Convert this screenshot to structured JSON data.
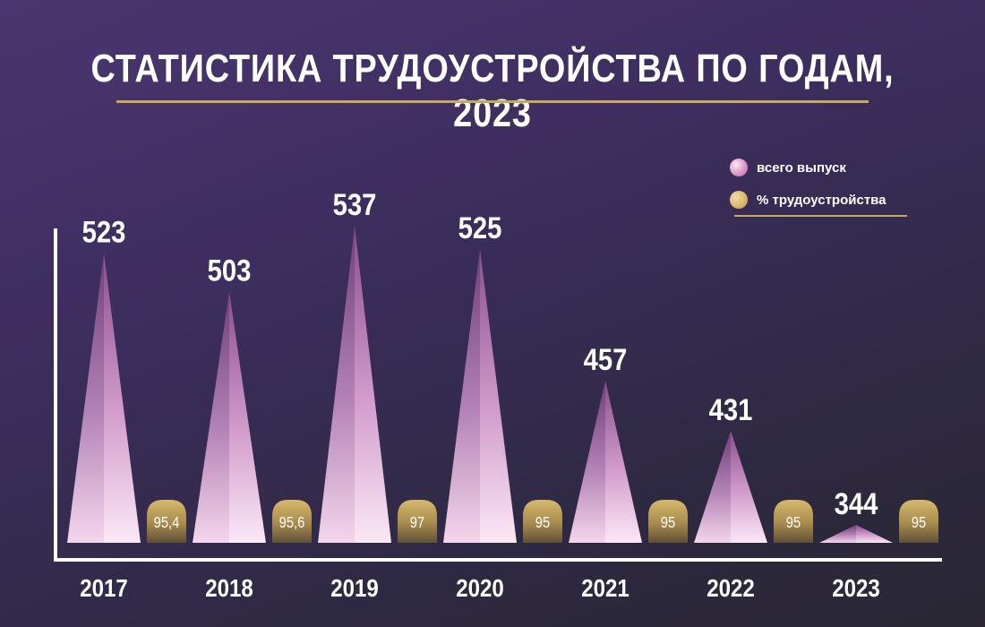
{
  "title": "СТАТИСТИКА ТРУДОУСТРОЙСТВА ПО ГОДАМ, 2023",
  "legend": {
    "items": [
      {
        "label": "всего выпуск",
        "color": "#d98fc4"
      },
      {
        "label": "% трудоустройства",
        "color": "#d8b56c"
      }
    ]
  },
  "chart_data": {
    "type": "bar",
    "categories": [
      "2017",
      "2018",
      "2019",
      "2020",
      "2021",
      "2022",
      "2023"
    ],
    "series": [
      {
        "name": "всего выпуск",
        "values": [
          523,
          503,
          537,
          525,
          457,
          431,
          344
        ],
        "labels": [
          "523",
          "503",
          "537",
          "525",
          "457",
          "431",
          "344"
        ]
      },
      {
        "name": "% трудоустройства",
        "values": [
          95.4,
          95.6,
          97,
          95,
          95,
          95,
          95
        ],
        "labels": [
          "95,4",
          "95,6",
          "97",
          "95",
          "95",
          "95",
          "95"
        ]
      }
    ],
    "legend_position": "top-right",
    "grid": false
  }
}
